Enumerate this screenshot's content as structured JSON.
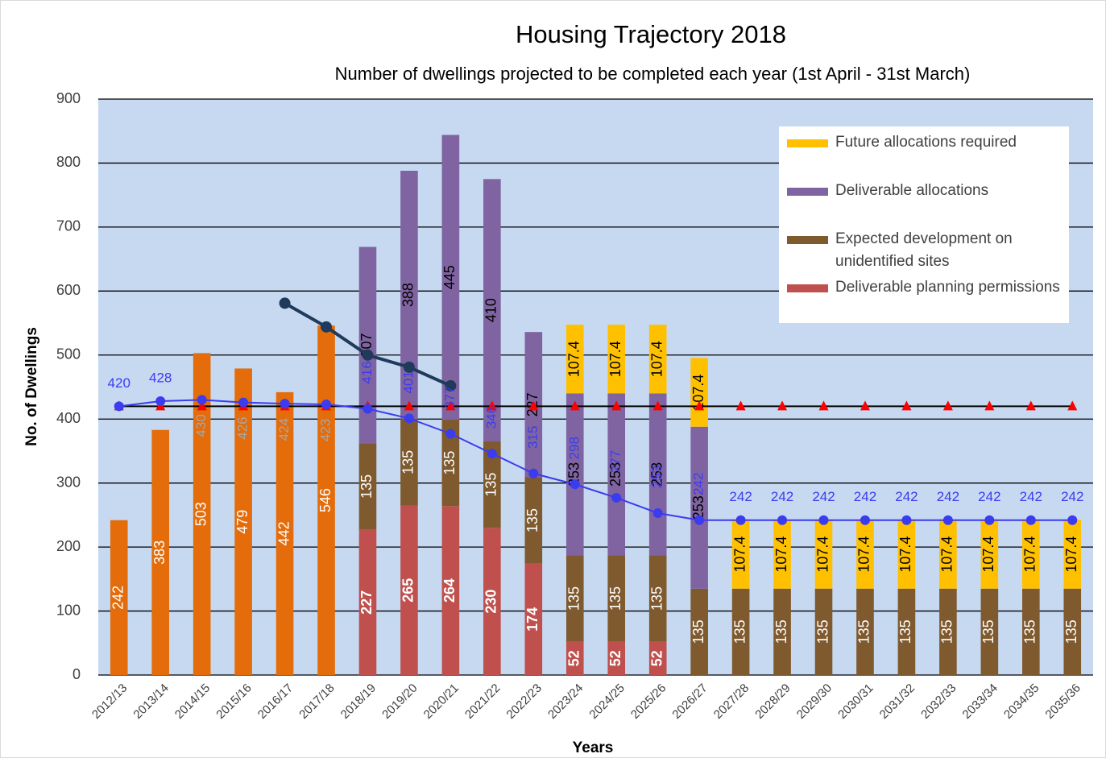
{
  "chart_data": {
    "type": "bar",
    "title": "Housing Trajectory 2018",
    "subtitle": "Number of dwellings projected to be completed each year (1st April - 31st March)",
    "x_label": "Years",
    "y_label": "No. of Dwellings",
    "categories": [
      "2012/13",
      "2013/14",
      "2014/15",
      "2015/16",
      "2016/17",
      "2017/18",
      "2018/19",
      "2019/20",
      "2020/21",
      "2021/22",
      "2022/23",
      "2023/24",
      "2024/25",
      "2025/26",
      "2026/27",
      "2027/28",
      "2028/29",
      "2029/30",
      "2030/31",
      "2031/32",
      "2032/33",
      "2033/34",
      "2034/35",
      "2035/36"
    ],
    "ylim": [
      0,
      900
    ],
    "yticks": [
      0,
      100,
      200,
      300,
      400,
      500,
      600,
      700,
      800,
      900
    ],
    "grid": true,
    "stacked": true,
    "series": [
      {
        "color": "#e46c0a",
        "label_color": "#ffffff",
        "values": [
          242,
          383,
          503,
          479,
          442,
          546,
          null,
          null,
          null,
          null,
          null,
          null,
          null,
          null,
          null,
          null,
          null,
          null,
          null,
          null,
          null,
          null,
          null,
          null
        ]
      },
      {
        "name": "Deliverable planning permissions",
        "color": "#c0504d",
        "label_color": "#ffffff",
        "label_bold": true,
        "values": [
          null,
          null,
          null,
          null,
          null,
          null,
          227,
          265,
          264,
          230,
          174,
          52,
          52,
          52,
          null,
          null,
          null,
          null,
          null,
          null,
          null,
          null,
          null,
          null
        ]
      },
      {
        "name": "Expected development on unidentified sites",
        "color": "#7f5a2e",
        "label_color": "#ffffff",
        "values": [
          null,
          null,
          null,
          null,
          null,
          null,
          135,
          135,
          135,
          135,
          135,
          135,
          135,
          135,
          135,
          135,
          135,
          135,
          135,
          135,
          135,
          135,
          135,
          135
        ]
      },
      {
        "name": "Deliverable allocations",
        "color": "#8064a2",
        "label_color": "#000000",
        "values": [
          null,
          null,
          null,
          null,
          null,
          null,
          307,
          388,
          445,
          410,
          227,
          253,
          253,
          253,
          253,
          null,
          null,
          null,
          null,
          null,
          null,
          null,
          null,
          null
        ]
      },
      {
        "name": "Future allocations required",
        "color": "#ffc000",
        "label_color": "#000000",
        "values": [
          null,
          null,
          null,
          null,
          null,
          null,
          null,
          null,
          null,
          null,
          null,
          107.4,
          107.4,
          107.4,
          107.4,
          107.4,
          107.4,
          107.4,
          107.4,
          107.4,
          107.4,
          107.4,
          107.4,
          107.4
        ]
      }
    ],
    "lines": [
      {
        "type": "line",
        "color": "#000000",
        "width": 2,
        "marker": "none",
        "values": [
          420,
          420,
          420,
          420,
          420,
          420,
          420,
          420,
          420,
          420,
          420,
          420,
          420,
          420,
          420,
          420,
          420,
          420,
          420,
          420,
          420,
          420,
          420,
          420
        ]
      },
      {
        "type": "line",
        "color": "#ff0000",
        "width": 0,
        "marker": "triangle",
        "values": [
          420,
          420,
          420,
          420,
          420,
          420,
          420,
          420,
          420,
          420,
          420,
          420,
          420,
          420,
          420,
          420,
          420,
          420,
          420,
          420,
          420,
          420,
          420,
          420
        ]
      },
      {
        "type": "line",
        "color": "#1f3a5a",
        "width": 4,
        "marker": "circle",
        "values": [
          null,
          null,
          null,
          null,
          581,
          544,
          500,
          481,
          452,
          null,
          null,
          null,
          null,
          null,
          null,
          null,
          null,
          null,
          null,
          null,
          null,
          null,
          null,
          null
        ]
      },
      {
        "type": "line",
        "color": "#3b3bef",
        "width": 2,
        "marker": "circle",
        "data_labels": true,
        "values": [
          420,
          428,
          430,
          426,
          424,
          423,
          416,
          401,
          377,
          346,
          315,
          298,
          277,
          253,
          242,
          242,
          242,
          242,
          242,
          242,
          242,
          242,
          242,
          242
        ]
      }
    ]
  }
}
